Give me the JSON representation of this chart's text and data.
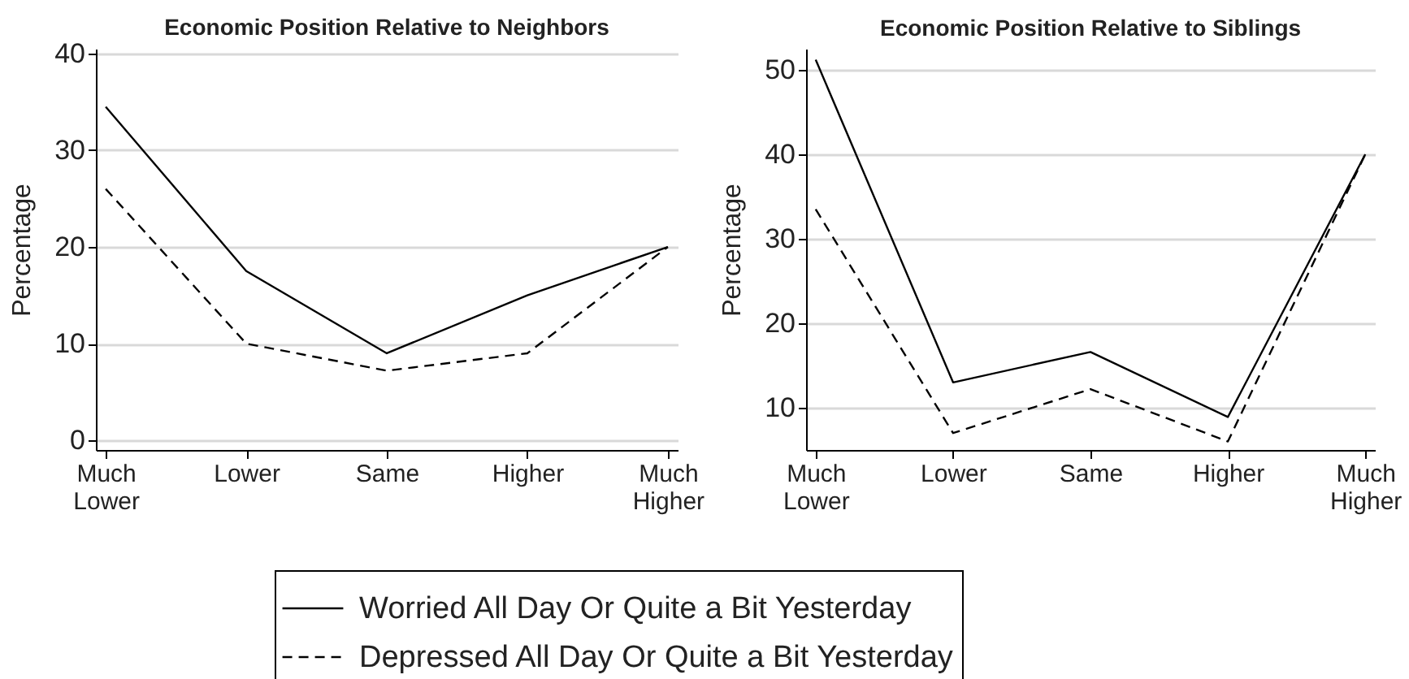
{
  "chart_data": [
    {
      "type": "line",
      "title": "Economic Position Relative to Neighbors",
      "ylabel": "Percentage",
      "categories": [
        "Much Lower",
        "Lower",
        "Same",
        "Higher",
        "Much Higher"
      ],
      "series": [
        {
          "name": "Worried All Day Or Quite a Bit Yesterday",
          "color": "#000000",
          "line_style": "solid",
          "values": [
            34.5,
            17.5,
            9,
            15,
            20
          ]
        },
        {
          "name": "Depressed All Day Or Quite a Bit Yesterday",
          "color": "#000000",
          "line_style": "dashed",
          "values": [
            26,
            10,
            7.2,
            9,
            20
          ]
        }
      ],
      "ylim": [
        -1,
        40.5
      ],
      "yticks": [
        0,
        10,
        20,
        30,
        40
      ],
      "grid": "y",
      "legend": "bottom"
    },
    {
      "type": "line",
      "title": "Economic Position Relative to Siblings",
      "ylabel": "Percentage",
      "categories": [
        "Much Lower",
        "Lower",
        "Same",
        "Higher",
        "Much Higher"
      ],
      "series": [
        {
          "name": "Worried All Day Or Quite a Bit Yesterday",
          "color": "#000000",
          "line_style": "solid",
          "values": [
            51.2,
            13,
            16.6,
            8.9,
            40
          ]
        },
        {
          "name": "Depressed All Day Or Quite a Bit Yesterday",
          "color": "#000000",
          "line_style": "dashed",
          "values": [
            33.5,
            7,
            12.2,
            6,
            40
          ]
        }
      ],
      "ylim": [
        5,
        52.5
      ],
      "yticks": [
        10,
        20,
        30,
        40,
        50
      ],
      "grid": "y",
      "legend": "bottom"
    }
  ]
}
